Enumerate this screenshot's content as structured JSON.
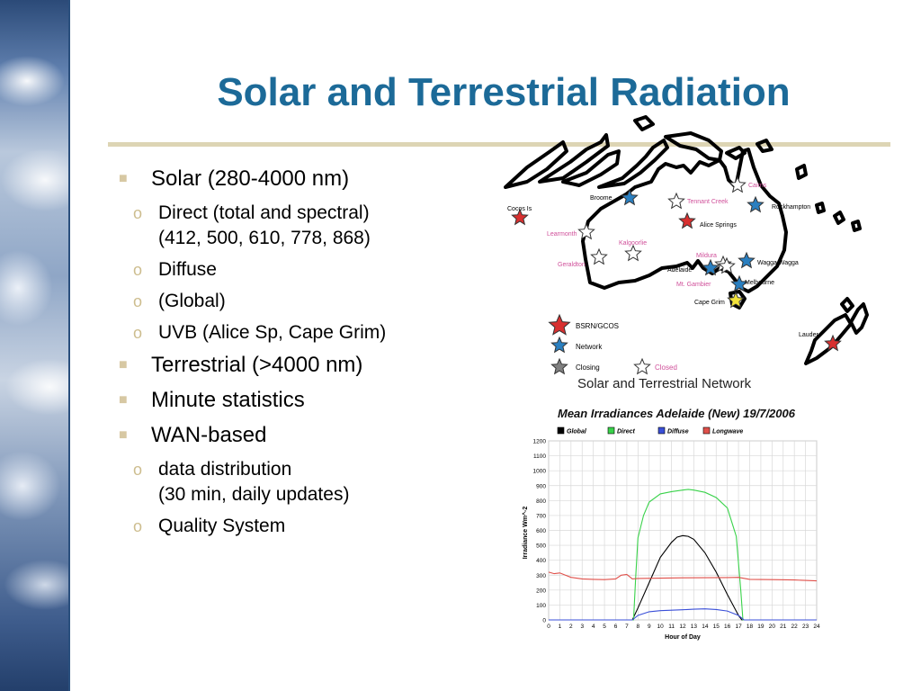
{
  "slide": {
    "title": "Solar and Terrestrial Radiation",
    "bullets": [
      {
        "text": "Solar (280-4000 nm)",
        "sub": [
          {
            "line1": "Direct (total and spectral)",
            "line2": "(412, 500, 610, 778, 868)"
          },
          {
            "line1": "Diffuse",
            "line2": ""
          },
          {
            "line1": "(Global)",
            "line2": ""
          },
          {
            "line1": "UVB (Alice Sp, Cape Grim)",
            "line2": ""
          }
        ]
      },
      {
        "text": "Terrestrial (>4000 nm)",
        "sub": []
      },
      {
        "text": "Minute statistics",
        "sub": []
      },
      {
        "text": "WAN-based",
        "sub": [
          {
            "line1": "data distribution",
            "line2": "(30 min, daily updates)"
          },
          {
            "line1": "Quality System",
            "line2": ""
          }
        ]
      }
    ]
  },
  "map": {
    "title": "Solar and Terrestrial Network",
    "stations": [
      {
        "name": "Cocos Is",
        "kind": "bsrn"
      },
      {
        "name": "Broome",
        "kind": "network"
      },
      {
        "name": "Learmonth",
        "kind": "closed"
      },
      {
        "name": "Geraldton",
        "kind": "closed"
      },
      {
        "name": "Kalgoorlie",
        "kind": "closed"
      },
      {
        "name": "Tennant Creek",
        "kind": "closed"
      },
      {
        "name": "Alice Springs",
        "kind": "bsrn"
      },
      {
        "name": "Cairns",
        "kind": "closed"
      },
      {
        "name": "Rockhampton",
        "kind": "network"
      },
      {
        "name": "Mildura",
        "kind": "closed"
      },
      {
        "name": "Adelaide",
        "kind": "network"
      },
      {
        "name": "Wagga Wagga",
        "kind": "network"
      },
      {
        "name": "Mt. Gambier",
        "kind": "closed"
      },
      {
        "name": "Melbourne",
        "kind": "network"
      },
      {
        "name": "Cape Grim",
        "kind": "uvb"
      },
      {
        "name": "Lauder",
        "kind": "bsrn"
      }
    ],
    "legend": [
      "BSRN/GCOS",
      "Network",
      "Closing",
      "Closed"
    ],
    "colors": {
      "bsrn": "#d83030",
      "network": "#2a7fc0",
      "closing": "#808080",
      "closed": "#ffffff",
      "uvb": "#f2e23a",
      "closed_label": "#d0509a"
    }
  },
  "chart_data": {
    "type": "line",
    "title": "Mean Irradiances Adelaide (New) 19/7/2006",
    "xlabel": "Hour of Day",
    "ylabel": "Irradiance Wm^-2",
    "xlim": [
      0,
      24
    ],
    "ylim": [
      0,
      1200
    ],
    "xticks": [
      "0",
      "1",
      "2",
      "3",
      "4",
      "5",
      "6",
      "7",
      "8",
      "9",
      "10",
      "11",
      "12",
      "13",
      "14",
      "15",
      "16",
      "17",
      "18",
      "19",
      "20",
      "21",
      "22",
      "23",
      "24"
    ],
    "yticks": [
      "0",
      "100",
      "200",
      "300",
      "400",
      "500",
      "600",
      "700",
      "800",
      "900",
      "1000",
      "1100",
      "1200"
    ],
    "grid": true,
    "legend_position": "top",
    "series": [
      {
        "name": "Global",
        "color": "#000000",
        "x": [
          0,
          7.5,
          8,
          9,
          10,
          11,
          11.5,
          12,
          12.5,
          13,
          14,
          15,
          16,
          17,
          17.3,
          24
        ],
        "y": [
          0,
          0,
          80,
          250,
          420,
          520,
          555,
          565,
          560,
          540,
          450,
          320,
          170,
          30,
          0,
          0
        ]
      },
      {
        "name": "Direct",
        "color": "#39d24a",
        "x": [
          0,
          7.6,
          7.8,
          8,
          8.5,
          9,
          10,
          11,
          12,
          12.5,
          13,
          14,
          15,
          16,
          16.8,
          17.2,
          17.4,
          24
        ],
        "y": [
          0,
          0,
          300,
          550,
          700,
          790,
          845,
          860,
          870,
          875,
          870,
          855,
          820,
          750,
          560,
          200,
          0,
          0
        ]
      },
      {
        "name": "Diffuse",
        "color": "#3a4fd8",
        "x": [
          0,
          7.5,
          8,
          9,
          10,
          11,
          12,
          13,
          14,
          15,
          16,
          17,
          17.5,
          24
        ],
        "y": [
          0,
          0,
          30,
          55,
          62,
          65,
          68,
          72,
          74,
          70,
          60,
          30,
          0,
          0
        ]
      },
      {
        "name": "Longwave",
        "color": "#e0504a",
        "x": [
          0,
          0.5,
          1,
          1.5,
          2,
          3,
          4,
          5,
          6,
          6.5,
          7,
          7.5,
          8,
          10,
          12,
          14,
          16,
          17,
          18,
          20,
          22,
          24
        ],
        "y": [
          320,
          310,
          315,
          300,
          285,
          275,
          272,
          270,
          275,
          300,
          305,
          275,
          278,
          280,
          282,
          283,
          284,
          285,
          272,
          270,
          268,
          262
        ]
      }
    ]
  }
}
